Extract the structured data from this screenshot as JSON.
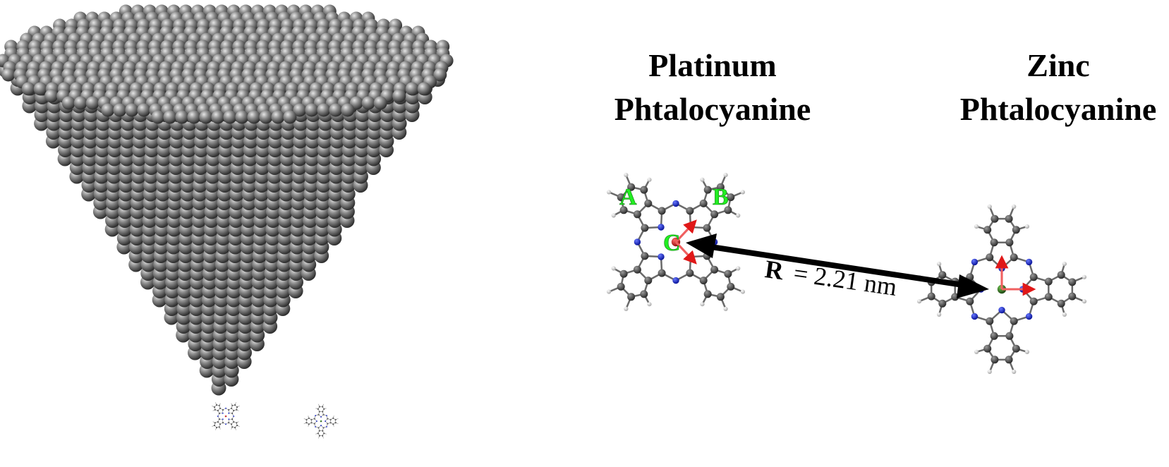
{
  "platinum_title": {
    "line1": "Platinum",
    "line2": "Phtalocyanine"
  },
  "zinc_title": {
    "line1": "Zinc",
    "line2": "Phtalocyanine"
  },
  "site_labels": {
    "a": "A",
    "b": "B",
    "c": "C"
  },
  "distance": {
    "symbol": "R",
    "value": "= 2.21 nm"
  },
  "colors": {
    "carbon": "#4a4a4a",
    "nitrogen": "#1a2bd6",
    "hydrogen": "#e0e0e0",
    "platinum": "#cc1111",
    "zinc": "#3a7a2a",
    "axes": "#f05050",
    "label_green": "#22ee22",
    "tip_atoms": "#7a7a7a"
  }
}
